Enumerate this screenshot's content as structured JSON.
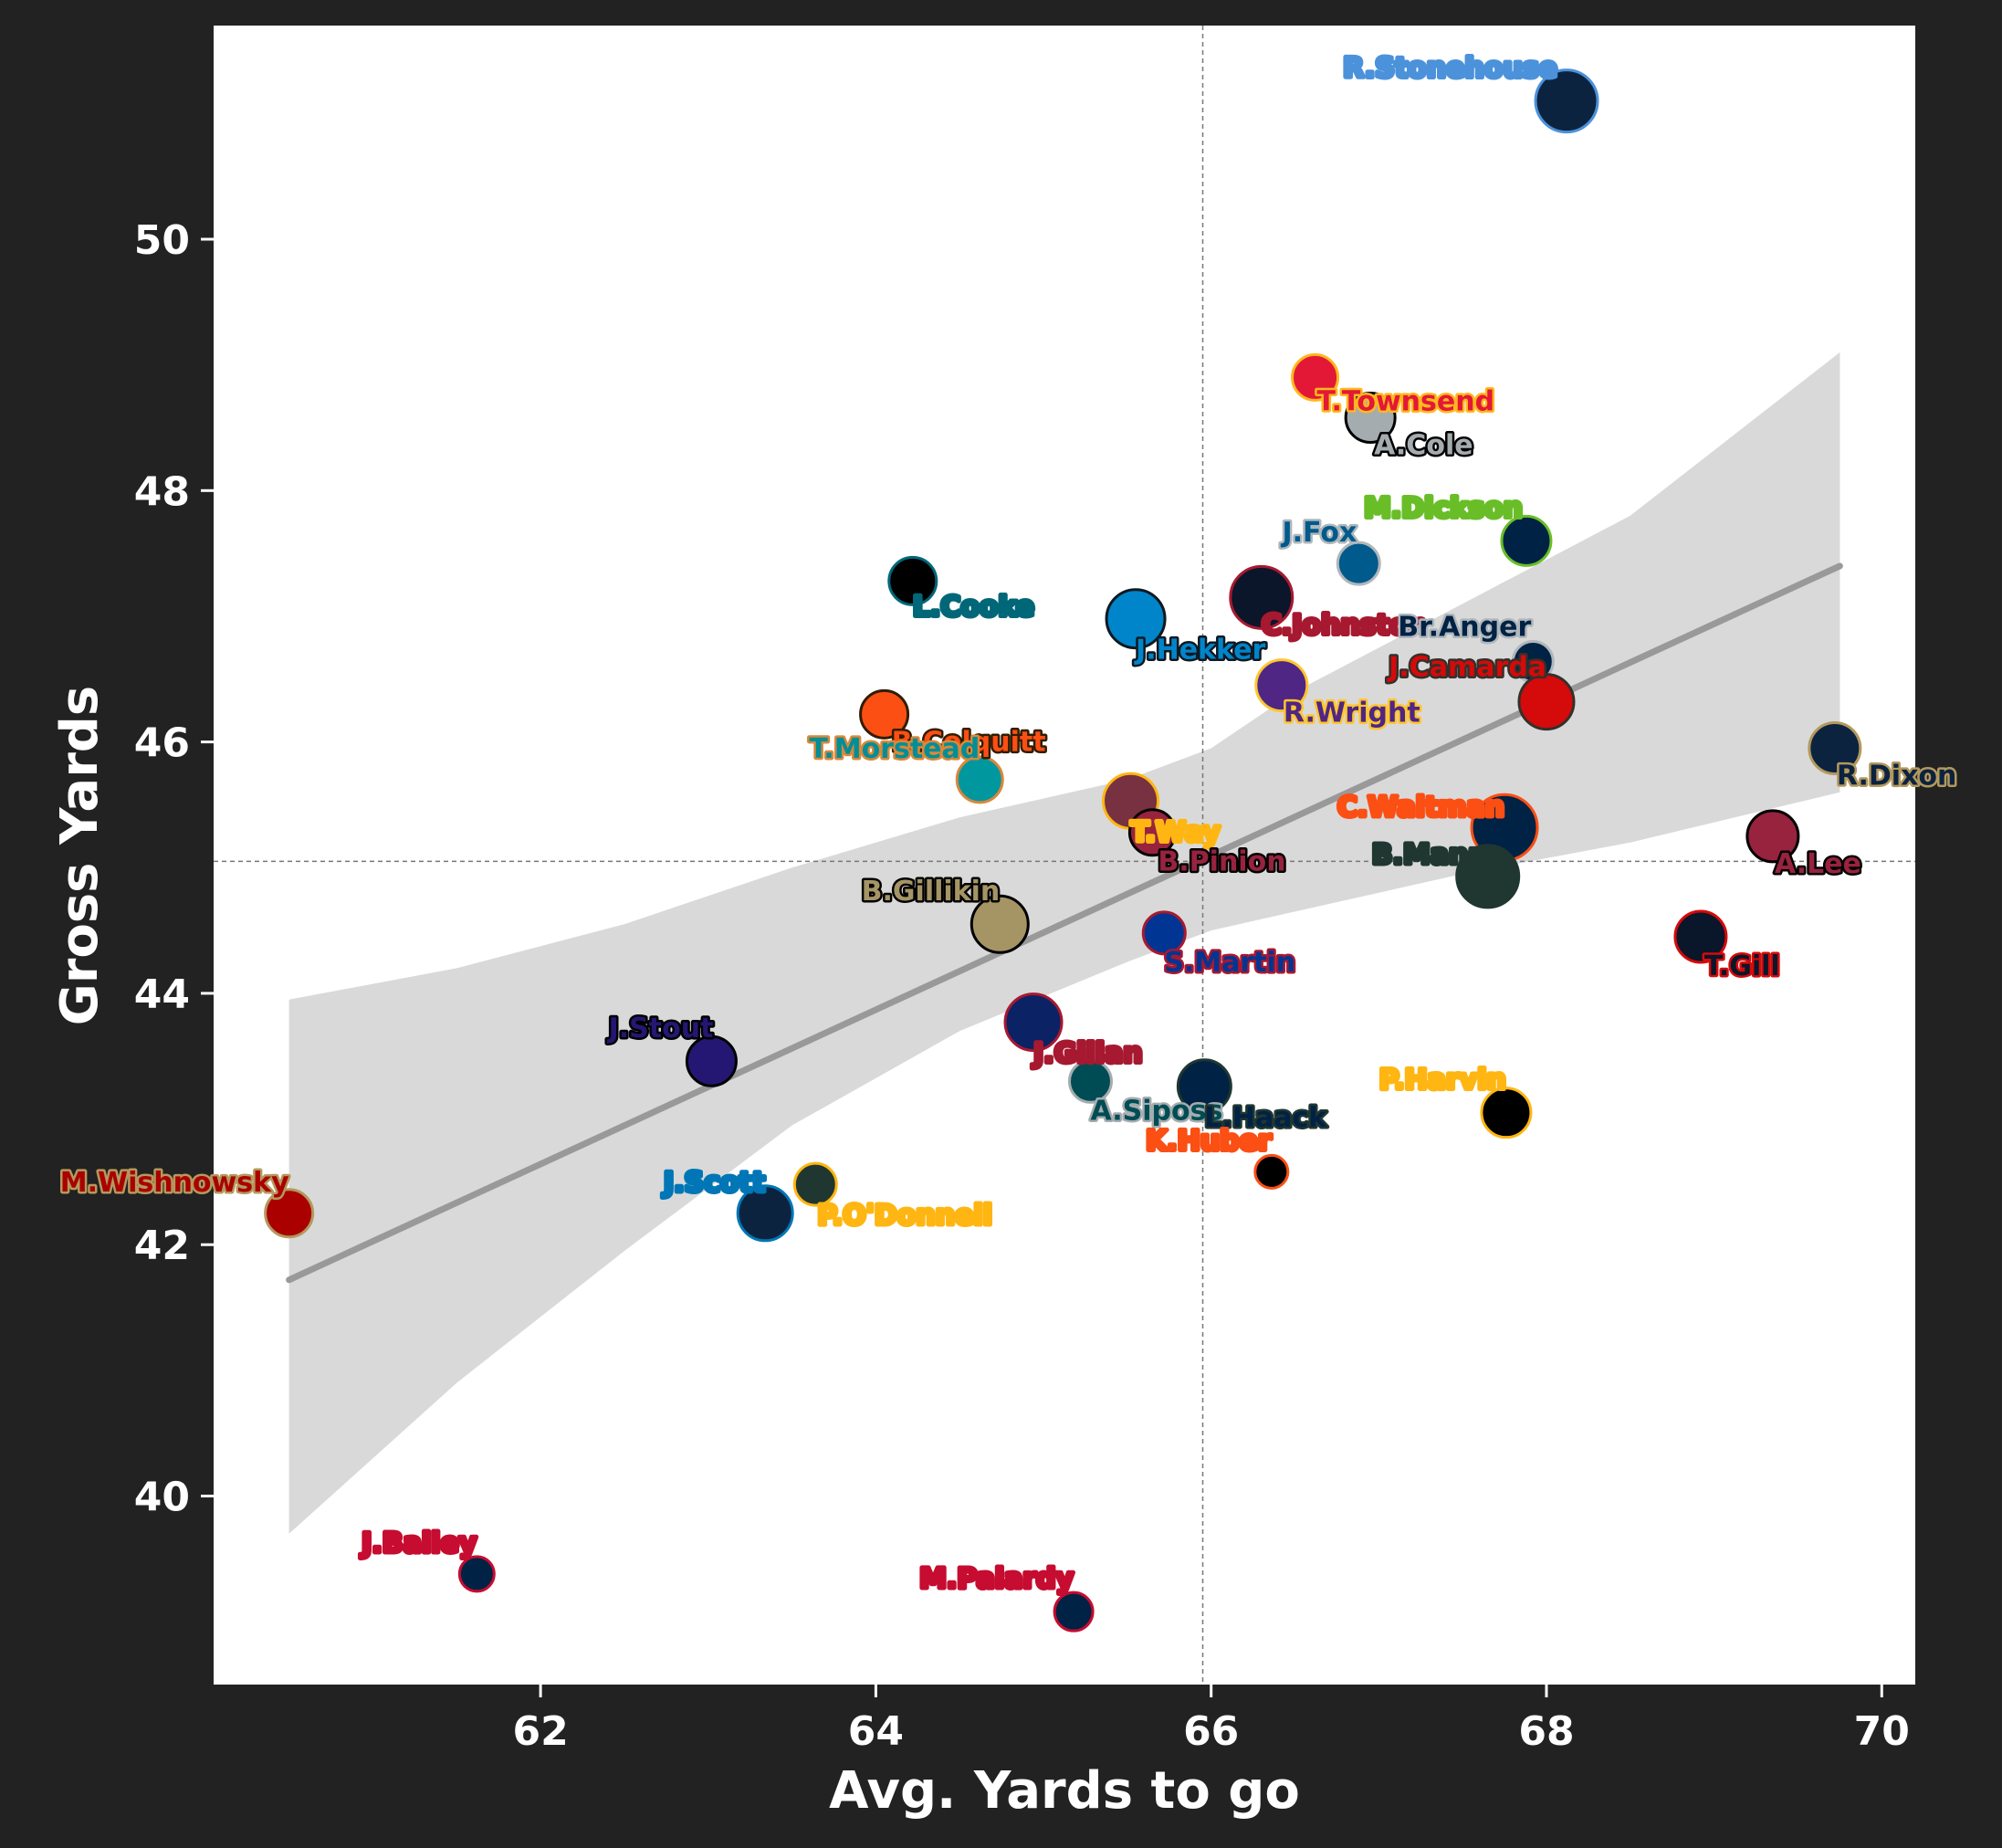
{
  "chart_data": {
    "type": "scatter",
    "title": "",
    "xlabel": "Avg. Yards to go",
    "ylabel": "Gross Yards",
    "xlim": [
      60.05,
      70.2
    ],
    "ylim": [
      38.5,
      51.7
    ],
    "xticks": [
      62,
      64,
      66,
      68,
      70
    ],
    "yticks": [
      40,
      42,
      44,
      46,
      48,
      50
    ],
    "mean_x": 65.95,
    "mean_y": 45.05,
    "regression": {
      "x0": 60.5,
      "y0": 41.72,
      "x1": 69.75,
      "y1": 47.4
    },
    "confidence_band": {
      "x": [
        60.5,
        61.5,
        62.5,
        63.5,
        64.5,
        65.5,
        66.0,
        66.5,
        67.5,
        68.5,
        69.75
      ],
      "upper": [
        43.95,
        44.2,
        44.55,
        45.0,
        45.4,
        45.7,
        45.95,
        46.4,
        47.1,
        47.8,
        49.1
      ],
      "lower": [
        39.7,
        40.9,
        41.95,
        42.95,
        43.7,
        44.25,
        44.5,
        44.65,
        44.95,
        45.2,
        45.6
      ]
    },
    "points": [
      {
        "name": "R.Stonehouse",
        "x": 68.12,
        "y": 51.1,
        "fill": "#0C2340",
        "edge": "#4B92DB",
        "size": 34,
        "label_color": "#4B92DB",
        "label_anchor": "end",
        "label_dx": -10,
        "label_dy": -26
      },
      {
        "name": "T.Townsend",
        "x": 66.62,
        "y": 48.9,
        "fill": "#E31837",
        "edge": "#FFB81C",
        "size": 25,
        "label_color": "#E31837",
        "label_anchor": "start",
        "label_dx": 2,
        "label_dy": 36
      },
      {
        "name": "A.Cole",
        "x": 66.95,
        "y": 48.58,
        "fill": "#A5ACAF",
        "edge": "#000000",
        "size": 27,
        "label_color": "#A5ACAF",
        "label_anchor": "start",
        "label_dx": 4,
        "label_dy": 40
      },
      {
        "name": "M.Dickson",
        "x": 67.88,
        "y": 47.6,
        "fill": "#002244",
        "edge": "#69BE28",
        "size": 27,
        "label_color": "#69BE28",
        "label_anchor": "end",
        "label_dx": -4,
        "label_dy": -26
      },
      {
        "name": "J.Fox",
        "x": 66.88,
        "y": 47.42,
        "fill": "#005A8B",
        "edge": "#B0B7BC",
        "size": 23,
        "label_color": "#005A8B",
        "label_anchor": "end",
        "label_dx": -2,
        "label_dy": -24
      },
      {
        "name": "L.Cooke",
        "x": 64.22,
        "y": 47.28,
        "fill": "#000000",
        "edge": "#006778",
        "size": 26,
        "label_color": "#006778",
        "label_anchor": "start",
        "label_dx": 0,
        "label_dy": 38
      },
      {
        "name": "C.Johnston",
        "x": 66.3,
        "y": 47.15,
        "fill": "#0B162A",
        "edge": "#A71930",
        "size": 34,
        "label_color": "#A71930",
        "label_anchor": "start",
        "label_dx": 0,
        "label_dy": 40
      },
      {
        "name": "J.Hekker",
        "x": 65.55,
        "y": 46.98,
        "fill": "#0085CA",
        "edge": "#101820",
        "size": 32,
        "label_color": "#0085CA",
        "label_anchor": "start",
        "label_dx": 0,
        "label_dy": 44
      },
      {
        "name": "Br.Anger",
        "x": 67.92,
        "y": 46.64,
        "fill": "#002244",
        "edge": "#B0B7BC",
        "size": 22,
        "label_color": "#002244",
        "label_anchor": "end",
        "label_dx": -2,
        "label_dy": -28
      },
      {
        "name": "R.Wright",
        "x": 66.42,
        "y": 46.45,
        "fill": "#4F2683",
        "edge": "#FFC62F",
        "size": 28,
        "label_color": "#4F2683",
        "label_anchor": "start",
        "label_dx": 2,
        "label_dy": 40
      },
      {
        "name": "J.Camarda",
        "x": 68.0,
        "y": 46.32,
        "fill": "#D50A0A",
        "edge": "#34302B",
        "size": 30,
        "label_color": "#D50A0A",
        "label_anchor": "end",
        "label_dx": 0,
        "label_dy": -28
      },
      {
        "name": "B.Colquitt",
        "x": 64.05,
        "y": 46.22,
        "fill": "#FB4F14",
        "edge": "#311D00",
        "size": 26,
        "label_color": "#FB4F14",
        "label_anchor": "start",
        "label_dx": 8,
        "label_dy": 40
      },
      {
        "name": "R.Dixon",
        "x": 69.72,
        "y": 45.95,
        "fill": "#0C2340",
        "edge": "#B3995D",
        "size": 28,
        "label_color": "#0C2340",
        "label_anchor": "start",
        "label_dx": 2,
        "label_dy": 40
      },
      {
        "name": "T.Morstead",
        "x": 64.62,
        "y": 45.7,
        "fill": "#00979F",
        "edge": "#D9883A",
        "size": 25,
        "label_color": "#008E97",
        "label_anchor": "end",
        "label_dx": 0,
        "label_dy": -24
      },
      {
        "name": "T.Way",
        "x": 65.52,
        "y": 45.53,
        "fill": "#773141",
        "edge": "#FFB612",
        "size": 30,
        "label_color": "#FFB612",
        "label_anchor": "start",
        "label_dx": 0,
        "label_dy": 44
      },
      {
        "name": "B.Pinion",
        "x": 65.65,
        "y": 45.28,
        "fill": "#97233F",
        "edge": "#000000",
        "size": 25,
        "label_color": "#97233F",
        "label_anchor": "start",
        "label_dx": 6,
        "label_dy": 42
      },
      {
        "name": "C.Waitman",
        "x": 67.75,
        "y": 45.32,
        "fill": "#002244",
        "edge": "#FB4F14",
        "size": 36,
        "label_color": "#FB4F14",
        "label_anchor": "end",
        "label_dx": 0,
        "label_dy": -12
      },
      {
        "name": "A.Lee",
        "x": 69.35,
        "y": 45.25,
        "fill": "#97233F",
        "edge": "#000000",
        "size": 28,
        "label_color": "#97233F",
        "label_anchor": "start",
        "label_dx": 2,
        "label_dy": 40
      },
      {
        "name": "B.Mann",
        "x": 67.65,
        "y": 44.93,
        "fill": "#203731",
        "edge": "#203731",
        "size": 34,
        "label_color": "#203731",
        "label_anchor": "end",
        "label_dx": 0,
        "label_dy": -14
      },
      {
        "name": "B.Gillikin",
        "x": 64.74,
        "y": 44.55,
        "fill": "#A59565",
        "edge": "#000000",
        "size": 31,
        "label_color": "#A59565",
        "label_anchor": "end",
        "label_dx": 0,
        "label_dy": -26
      },
      {
        "name": "S.Martin",
        "x": 65.72,
        "y": 44.48,
        "fill": "#003594",
        "edge": "#A71930",
        "size": 23,
        "label_color": "#003594",
        "label_anchor": "start",
        "label_dx": 0,
        "label_dy": 42
      },
      {
        "name": "T.Gill",
        "x": 68.92,
        "y": 44.45,
        "fill": "#0A162A",
        "edge": "#D50A0A",
        "size": 28,
        "label_color": "#0A162A",
        "label_anchor": "start",
        "label_dx": 4,
        "label_dy": 42
      },
      {
        "name": "J.Stout",
        "x": 63.02,
        "y": 43.46,
        "fill": "#241773",
        "edge": "#000000",
        "size": 27,
        "label_color": "#241773",
        "label_anchor": "end",
        "label_dx": 2,
        "label_dy": -26
      },
      {
        "name": "J.Gillan",
        "x": 64.94,
        "y": 43.77,
        "fill": "#0B2265",
        "edge": "#A71930",
        "size": 31,
        "label_color": "#A71930",
        "label_anchor": "start",
        "label_dx": 0,
        "label_dy": 44
      },
      {
        "name": "A.Siposs",
        "x": 65.28,
        "y": 43.3,
        "fill": "#004C54",
        "edge": "#A5ACAF",
        "size": 23,
        "label_color": "#004C54",
        "label_anchor": "start",
        "label_dx": 0,
        "label_dy": 42
      },
      {
        "name": "L.Haack",
        "x": 65.96,
        "y": 43.26,
        "fill": "#002244",
        "edge": "#203731",
        "size": 29,
        "label_color": "#002244",
        "label_anchor": "start",
        "label_dx": 0,
        "label_dy": 44
      },
      {
        "name": "P.Harvin",
        "x": 67.76,
        "y": 43.05,
        "fill": "#000000",
        "edge": "#FFB612",
        "size": 27,
        "label_color": "#FFB612",
        "label_anchor": "end",
        "label_dx": 0,
        "label_dy": -26
      },
      {
        "name": "K.Huber",
        "x": 66.36,
        "y": 42.58,
        "fill": "#000000",
        "edge": "#FB4F14",
        "size": 18,
        "label_color": "#FB4F14",
        "label_anchor": "end",
        "label_dx": 0,
        "label_dy": -24
      },
      {
        "name": "M.Wishnowsky",
        "x": 60.5,
        "y": 42.25,
        "fill": "#AA0000",
        "edge": "#B3995D",
        "size": 26,
        "label_color": "#AA0000",
        "label_anchor": "end",
        "label_dx": 0,
        "label_dy": -24
      },
      {
        "name": "J.Scott",
        "x": 63.34,
        "y": 42.25,
        "fill": "#0C2340",
        "edge": "#0076B6",
        "size": 30,
        "label_color": "#0076B6",
        "label_anchor": "end",
        "label_dx": 0,
        "label_dy": -24
      },
      {
        "name": "P.O'Donnell",
        "x": 63.64,
        "y": 42.48,
        "fill": "#203731",
        "edge": "#FFB612",
        "size": 23,
        "label_color": "#FFB612",
        "label_anchor": "start",
        "label_dx": 2,
        "label_dy": 44
      },
      {
        "name": "J.Bailey",
        "x": 61.62,
        "y": 39.38,
        "fill": "#002244",
        "edge": "#C60C30",
        "size": 19,
        "label_color": "#C60C30",
        "label_anchor": "end",
        "label_dx": 0,
        "label_dy": -24
      },
      {
        "name": "M.Palardy",
        "x": 65.18,
        "y": 39.08,
        "fill": "#002244",
        "edge": "#C60C30",
        "size": 21,
        "label_color": "#C60C30",
        "label_anchor": "end",
        "label_dx": 0,
        "label_dy": -26
      }
    ]
  }
}
